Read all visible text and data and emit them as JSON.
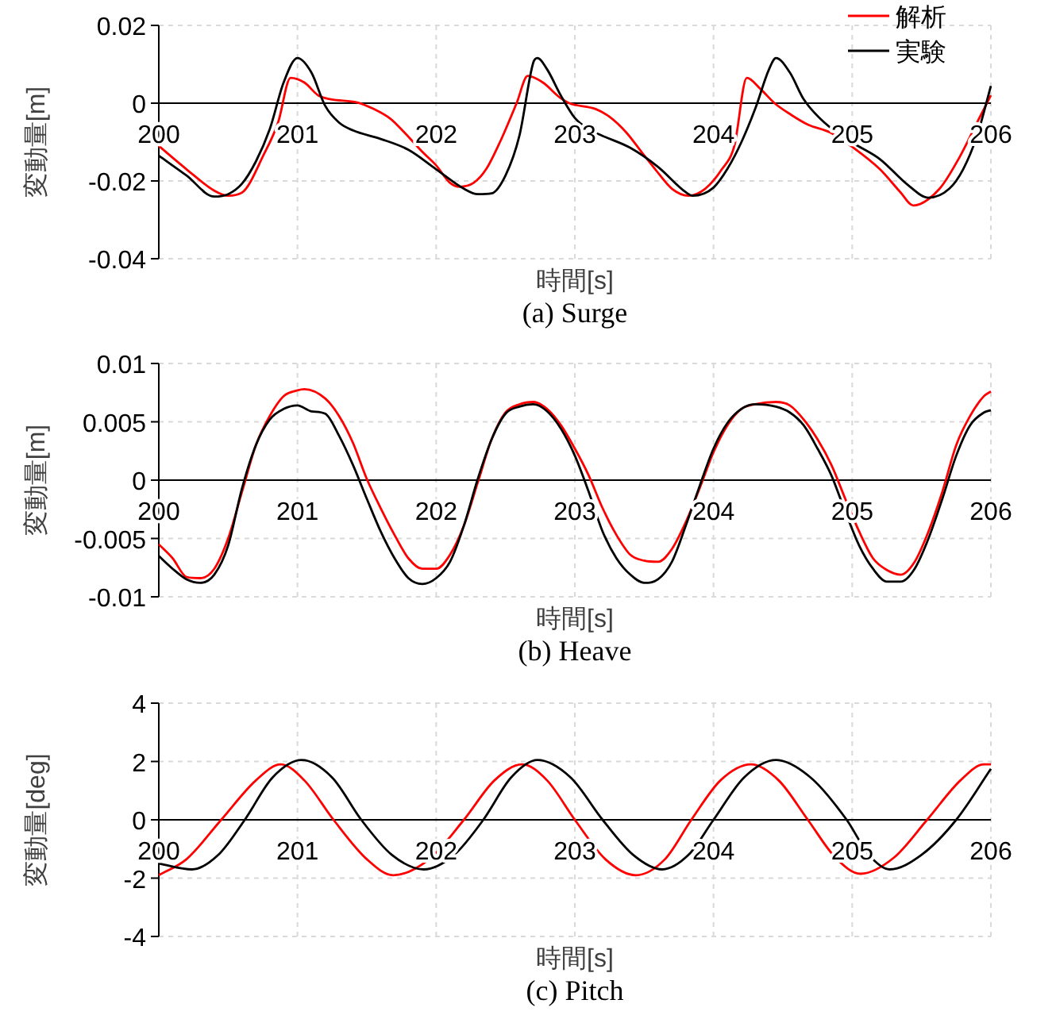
{
  "chart_data": [
    {
      "type": "line",
      "title": "(a) Surge",
      "xlabel": "時間[s]",
      "ylabel": "変動量[m]",
      "xlim": [
        200,
        206
      ],
      "xticks": [
        200,
        201,
        202,
        203,
        204,
        205,
        206
      ],
      "ylim": [
        -0.04,
        0.02
      ],
      "yticks": [
        -0.04,
        -0.02,
        0,
        0.02
      ],
      "grid": true,
      "legend": "top right",
      "series": [
        {
          "name": "解析",
          "color": "#ff0000",
          "x": [
            200,
            200.2,
            200.4,
            200.5,
            200.6,
            200.76,
            200.86,
            200.95,
            201.05,
            201.15,
            201.24,
            201.43,
            201.55,
            201.67,
            201.77,
            201.9,
            202.0,
            202.1,
            202.17,
            202.27,
            202.36,
            202.46,
            202.58,
            202.66,
            202.77,
            202.89,
            202.96,
            203.15,
            203.25,
            203.37,
            203.48,
            203.58,
            203.7,
            203.82,
            203.94,
            204.06,
            204.15,
            204.24,
            204.34,
            204.44,
            204.56,
            204.68,
            204.84,
            205.01,
            205.2,
            205.35,
            205.44,
            205.63,
            205.78,
            205.9,
            206
          ],
          "values": [
            -0.011,
            -0.017,
            -0.0225,
            -0.0238,
            -0.023,
            -0.013,
            -0.005,
            0.0065,
            0.0053,
            0.002,
            0.001,
            0.0002,
            -0.0015,
            -0.004,
            -0.0075,
            -0.0125,
            -0.016,
            -0.0205,
            -0.0215,
            -0.0205,
            -0.017,
            -0.01,
            0,
            0.007,
            0.0053,
            0.0015,
            0,
            -0.0015,
            -0.0035,
            -0.0075,
            -0.0125,
            -0.017,
            -0.022,
            -0.0238,
            -0.022,
            -0.017,
            -0.011,
            0.0065,
            0.0036,
            0,
            -0.003,
            -0.0055,
            -0.0075,
            -0.0115,
            -0.017,
            -0.023,
            -0.0263,
            -0.022,
            -0.0135,
            -0.005,
            0.002
          ]
        },
        {
          "name": "実験",
          "color": "#000000",
          "x": [
            200,
            200.2,
            200.4,
            200.5,
            200.6,
            200.7,
            200.8,
            200.9,
            201.0,
            201.1,
            201.2,
            201.3,
            201.4,
            201.6,
            201.8,
            202.0,
            202.2,
            202.3,
            202.4,
            202.5,
            202.6,
            202.7,
            202.73,
            202.8,
            202.9,
            203.0,
            203.1,
            203.2,
            203.4,
            203.6,
            203.8,
            203.85,
            204.0,
            204.1,
            204.2,
            204.3,
            204.4,
            204.45,
            204.55,
            204.65,
            204.8,
            205.0,
            205.2,
            205.4,
            205.55,
            205.7,
            205.8,
            205.9,
            206
          ],
          "values": [
            -0.0135,
            -0.0186,
            -0.024,
            -0.0234,
            -0.0207,
            -0.015,
            -0.0067,
            0.0053,
            0.0116,
            0.0079,
            -0.0007,
            -0.005,
            -0.007,
            -0.0092,
            -0.012,
            -0.017,
            -0.022,
            -0.0234,
            -0.0232,
            -0.0186,
            -0.0084,
            0.0104,
            0.0116,
            0.0087,
            0.0019,
            -0.0038,
            -0.0067,
            -0.0084,
            -0.0115,
            -0.0164,
            -0.0229,
            -0.0238,
            -0.0217,
            -0.0169,
            -0.0101,
            -0.0015,
            0.0087,
            0.0116,
            0.0079,
            0.001,
            -0.005,
            -0.0101,
            -0.0144,
            -0.021,
            -0.0243,
            -0.022,
            -0.017,
            -0.0084,
            0.0044
          ]
        }
      ]
    },
    {
      "type": "line",
      "title": "(b) Heave",
      "xlabel": "時間[s]",
      "ylabel": "変動量[m]",
      "xlim": [
        200,
        206
      ],
      "xticks": [
        200,
        201,
        202,
        203,
        204,
        205,
        206
      ],
      "ylim": [
        -0.01,
        0.01
      ],
      "yticks": [
        -0.01,
        -0.005,
        0,
        0.005,
        0.01
      ],
      "grid": true,
      "series": [
        {
          "color": "#ff0000",
          "x": [
            200,
            200.1,
            200.2,
            200.3,
            200.4,
            200.5,
            200.6,
            200.7,
            200.8,
            200.9,
            201.0,
            201.05,
            201.2,
            201.3,
            201.4,
            201.5,
            201.6,
            201.7,
            201.8,
            201.9,
            202.0,
            202.1,
            202.2,
            202.3,
            202.4,
            202.5,
            202.6,
            202.7,
            202.8,
            202.9,
            203.0,
            203.1,
            203.2,
            203.3,
            203.4,
            203.5,
            203.6,
            203.7,
            203.8,
            203.9,
            204.0,
            204.1,
            204.2,
            204.3,
            204.45,
            204.55,
            204.65,
            204.75,
            204.85,
            204.95,
            205.05,
            205.15,
            205.25,
            205.35,
            205.45,
            205.55,
            205.65,
            205.75,
            205.85,
            205.95,
            206
          ],
          "values": [
            -0.0055,
            -0.0067,
            -0.0083,
            -0.0084,
            -0.0076,
            -0.005,
            -0.001,
            0.003,
            0.0055,
            0.0072,
            0.0077,
            0.0078,
            0.007,
            0.0055,
            0.0032,
            0.0001,
            -0.0024,
            -0.0047,
            -0.0067,
            -0.0076,
            -0.0076,
            -0.0064,
            -0.0039,
            -0.0002,
            0.0035,
            0.0058,
            0.0065,
            0.0067,
            0.0061,
            0.0047,
            0.0027,
            0.0004,
            -0.0024,
            -0.0047,
            -0.0064,
            -0.0069,
            -0.007,
            -0.0059,
            -0.0036,
            -0.0007,
            0.0024,
            0.0047,
            0.0061,
            0.0065,
            0.0067,
            0.0064,
            0.0052,
            0.0035,
            0.0013,
            -0.0016,
            -0.0044,
            -0.0067,
            -0.0077,
            -0.0081,
            -0.007,
            -0.0044,
            -0.001,
            0.003,
            0.0055,
            0.0072,
            0.0076
          ]
        },
        {
          "color": "#000000",
          "x": [
            200,
            200.1,
            200.2,
            200.3,
            200.4,
            200.5,
            200.6,
            200.7,
            200.8,
            200.9,
            201.0,
            201.1,
            201.2,
            201.3,
            201.4,
            201.5,
            201.6,
            201.7,
            201.8,
            201.9,
            202.0,
            202.1,
            202.2,
            202.3,
            202.4,
            202.5,
            202.6,
            202.7,
            202.8,
            202.9,
            203.0,
            203.1,
            203.2,
            203.3,
            203.4,
            203.5,
            203.6,
            203.7,
            203.8,
            203.9,
            204.0,
            204.1,
            204.2,
            204.3,
            204.45,
            204.55,
            204.65,
            204.75,
            204.85,
            204.95,
            205.05,
            205.15,
            205.25,
            205.35,
            205.45,
            205.55,
            205.65,
            205.75,
            205.85,
            205.95,
            206
          ],
          "values": [
            -0.0065,
            -0.0076,
            -0.0085,
            -0.0088,
            -0.0081,
            -0.0056,
            -0.0007,
            0.003,
            0.0052,
            0.0061,
            0.0064,
            0.0059,
            0.0057,
            0.0038,
            0.0013,
            -0.0016,
            -0.0044,
            -0.0067,
            -0.0084,
            -0.0089,
            -0.0084,
            -0.007,
            -0.0039,
            0.0001,
            0.0035,
            0.0057,
            0.0063,
            0.0065,
            0.0059,
            0.0044,
            0.0021,
            -0.001,
            -0.0044,
            -0.0067,
            -0.0081,
            -0.0088,
            -0.0085,
            -0.007,
            -0.0039,
            -0.0005,
            0.0027,
            0.0049,
            0.0061,
            0.0065,
            0.0063,
            0.0058,
            0.0047,
            0.0027,
            0.0004,
            -0.0027,
            -0.0056,
            -0.0076,
            -0.0087,
            -0.0087,
            -0.0076,
            -0.005,
            -0.0016,
            0.0021,
            0.0047,
            0.0058,
            0.006
          ]
        }
      ]
    },
    {
      "type": "line",
      "title": "(c) Pitch",
      "xlabel": "時間[s]",
      "ylabel": "変動量[deg]",
      "xlim": [
        200,
        206
      ],
      "xticks": [
        200,
        201,
        202,
        203,
        204,
        205,
        206
      ],
      "ylim": [
        -4,
        4
      ],
      "yticks": [
        -4,
        -2,
        0,
        2,
        4
      ],
      "grid": true,
      "series": [
        {
          "color": "#ff0000",
          "x": [
            200,
            200.2,
            200.45,
            200.7,
            200.88,
            201.05,
            201.26,
            201.5,
            201.69,
            201.95,
            202.2,
            202.42,
            202.62,
            202.8,
            203.0,
            203.22,
            203.44,
            203.65,
            203.84,
            204.05,
            204.27,
            204.47,
            204.68,
            204.88,
            205.06,
            205.3,
            205.54,
            205.78,
            205.95,
            206
          ],
          "values": [
            -1.9,
            -1.35,
            0,
            1.35,
            1.9,
            1.35,
            0,
            -1.35,
            -1.9,
            -1.35,
            0,
            1.35,
            1.9,
            1.35,
            0,
            -1.35,
            -1.9,
            -1.35,
            0,
            1.35,
            1.9,
            1.35,
            0,
            -1.3,
            -1.85,
            -1.3,
            0,
            1.35,
            1.9,
            1.9
          ]
        },
        {
          "color": "#000000",
          "x": [
            200,
            200.24,
            200.43,
            200.62,
            200.82,
            201.03,
            201.25,
            201.46,
            201.68,
            201.91,
            202.13,
            202.34,
            202.54,
            202.73,
            202.97,
            203.2,
            203.42,
            203.63,
            203.82,
            204.0,
            204.22,
            204.45,
            204.7,
            204.96,
            205.12,
            205.27,
            205.5,
            205.75,
            206
          ],
          "values": [
            -1.5,
            -1.7,
            -1.2,
            0,
            1.45,
            2.05,
            1.45,
            0,
            -1.2,
            -1.7,
            -1.2,
            0,
            1.45,
            2.05,
            1.45,
            0,
            -1.2,
            -1.7,
            -1.2,
            0,
            1.45,
            2.05,
            1.45,
            0,
            -1.2,
            -1.7,
            -1.2,
            0,
            1.75
          ]
        }
      ]
    }
  ]
}
